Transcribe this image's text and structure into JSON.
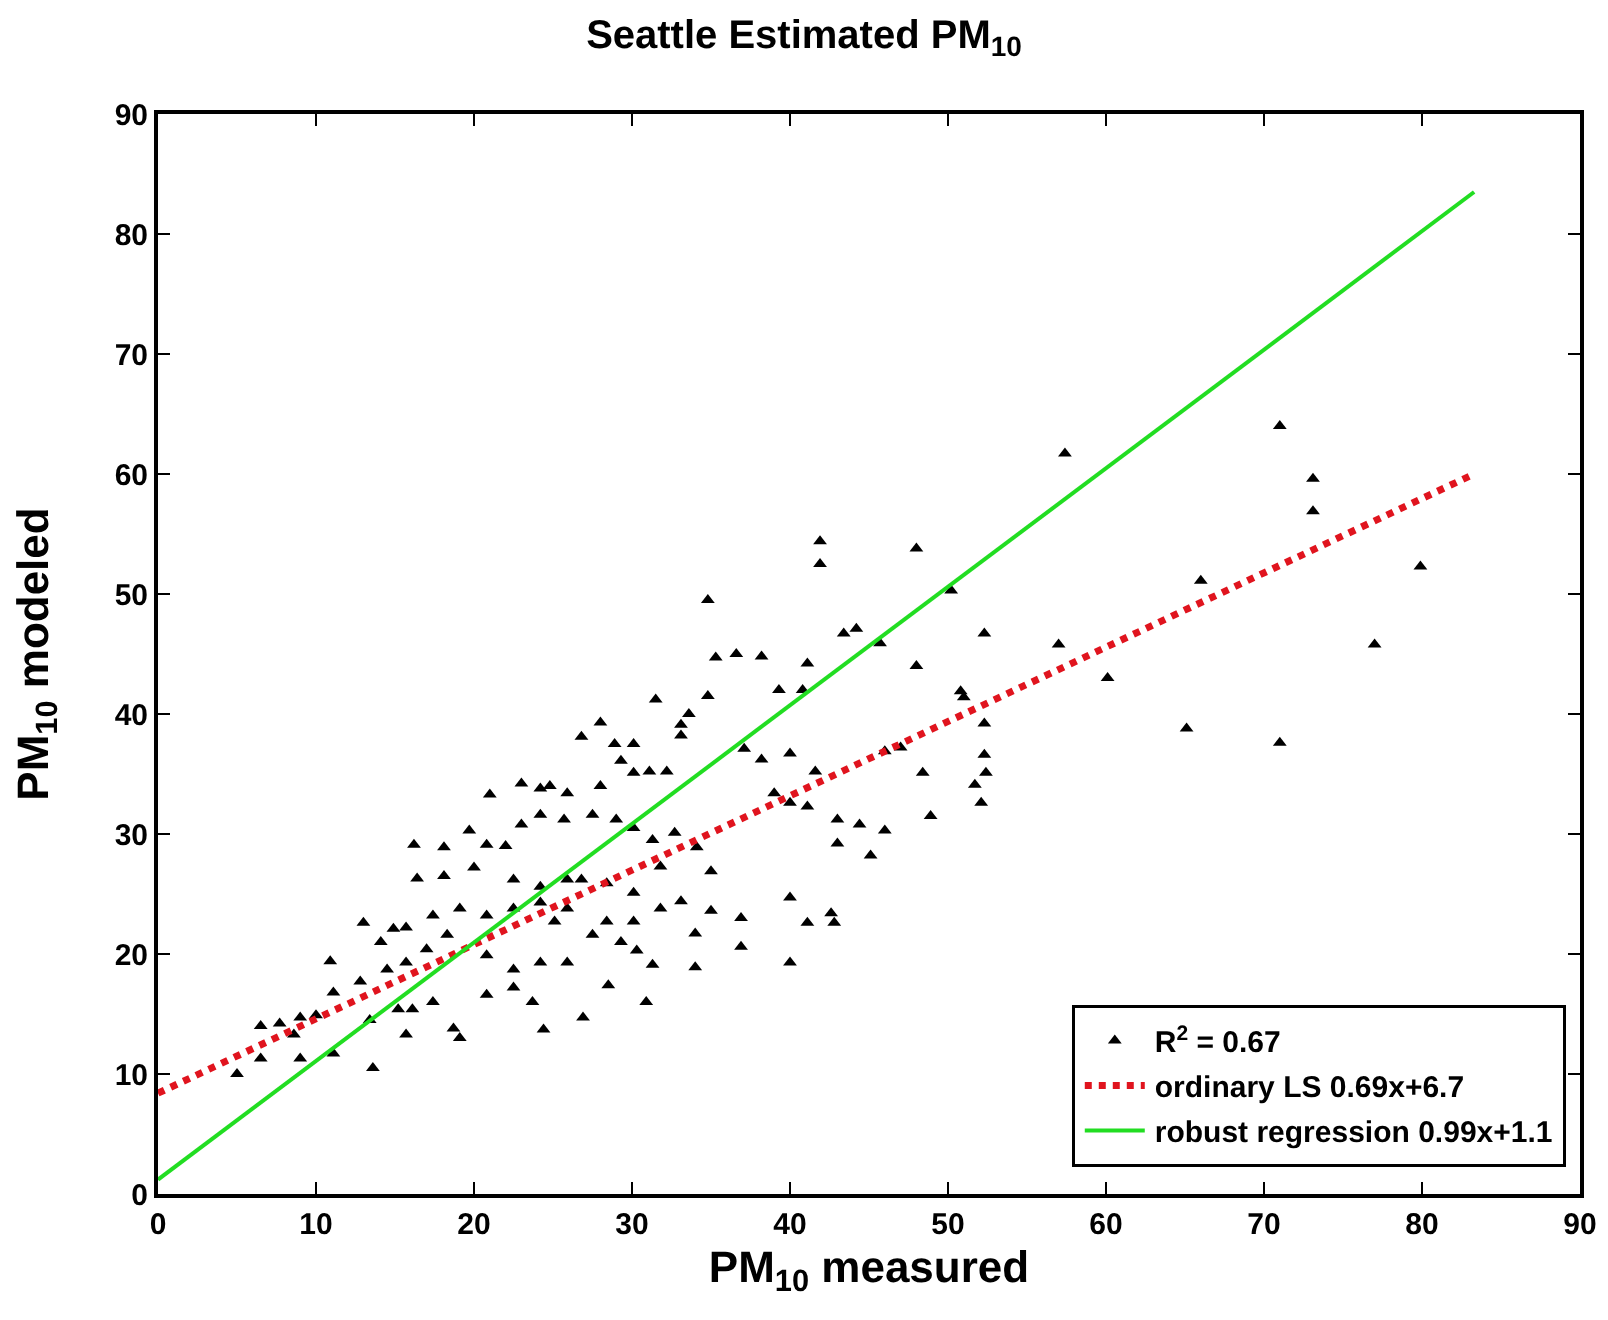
{
  "chart_data": {
    "type": "scatter",
    "title": "Seattle Estimated PM$_{10}$",
    "xlabel": "PM$_{10}$ measured",
    "ylabel": "PM$_{10}$ modeled",
    "xlim": [
      0,
      90
    ],
    "ylim": [
      0,
      90
    ],
    "xticks": [
      0,
      10,
      20,
      30,
      40,
      50,
      60,
      70,
      80,
      90
    ],
    "yticks": [
      0,
      10,
      20,
      30,
      40,
      50,
      60,
      70,
      80,
      90
    ],
    "legend": "bottom right",
    "series": [
      {
        "name": "R$^{2}$ = 0.67",
        "marker": "triangle",
        "color": "#000000",
        "x": [
          41.9,
          41.9,
          34.8,
          43.4,
          44.2,
          45.7,
          35.3,
          36.6,
          38.2,
          41.1,
          39.3,
          40.8,
          34.8,
          31.5,
          33.6,
          33.1,
          33.1,
          28.0,
          26.8,
          28.9,
          30.1,
          29.3,
          30.1,
          31.1,
          32.2,
          37.1,
          38.2,
          40.0,
          41.6,
          46.0,
          47.0,
          28.0,
          21.0,
          23.0,
          24.2,
          24.8,
          25.9,
          23.0,
          24.2,
          25.7,
          16.2,
          18.1,
          19.7,
          20.8,
          22.0,
          27.5,
          29.0,
          30.1,
          31.3,
          32.7,
          34.1,
          35.0,
          39.0,
          40.0,
          41.1,
          43.0,
          44.4,
          46.0,
          43.0,
          45.1,
          40.0,
          42.6,
          42.8,
          41.1,
          40.0,
          36.9,
          36.9,
          35.0,
          34.0,
          34.0,
          31.3,
          30.3,
          28.5,
          26.9,
          30.9,
          24.4,
          13.6,
          5.0,
          6.5,
          9.0,
          11.1,
          6.5,
          7.7,
          9.0,
          10.9,
          13.0,
          14.9,
          16.4,
          18.1,
          20.0,
          11.1,
          12.8,
          14.5,
          15.7,
          17.0,
          18.3,
          16.1,
          17.4,
          18.7,
          19.1,
          15.7,
          20.8,
          22.5,
          23.7,
          20.8,
          22.5,
          24.2,
          25.9,
          20.8,
          22.5,
          24.2,
          25.9,
          19.1,
          17.4,
          15.7,
          14.1,
          26.8,
          28.4,
          30.1,
          31.8,
          28.4,
          30.1,
          31.8,
          33.1,
          25.1,
          27.5,
          29.3,
          22.5,
          24.2,
          25.9,
          13.4,
          15.2,
          10.0,
          8.6,
          57.4,
          71.0,
          73.1,
          73.1,
          79.9,
          77.0,
          71.0,
          66.0,
          65.1,
          60.1,
          57.0,
          48.0,
          50.2,
          52.3,
          52.3,
          52.3,
          52.4,
          52.1,
          51.7,
          50.8,
          51.0,
          48.0,
          48.4,
          48.9
        ],
        "values": [
          54.4,
          52.5,
          49.5,
          46.7,
          47.1,
          45.9,
          44.7,
          45.0,
          44.8,
          44.2,
          42.0,
          42.0,
          41.5,
          41.2,
          40.0,
          39.1,
          38.2,
          39.3,
          38.1,
          37.5,
          37.5,
          36.1,
          35.1,
          35.2,
          35.2,
          37.1,
          36.2,
          36.7,
          35.2,
          36.9,
          37.2,
          34.0,
          33.3,
          34.2,
          33.8,
          34.0,
          33.4,
          30.8,
          31.6,
          31.2,
          29.1,
          28.9,
          30.3,
          29.1,
          29.0,
          31.6,
          31.2,
          30.5,
          29.5,
          30.1,
          28.9,
          26.9,
          33.4,
          32.6,
          32.3,
          31.2,
          30.8,
          30.3,
          29.2,
          28.2,
          24.7,
          23.4,
          22.6,
          22.6,
          19.3,
          23.0,
          20.6,
          23.6,
          21.7,
          18.9,
          19.1,
          20.3,
          17.4,
          14.7,
          16.0,
          13.7,
          10.5,
          10.0,
          11.3,
          11.3,
          11.7,
          14.0,
          14.2,
          14.7,
          19.4,
          22.6,
          22.1,
          26.3,
          26.5,
          27.2,
          16.8,
          17.7,
          18.7,
          19.3,
          20.4,
          21.6,
          15.4,
          16.0,
          13.8,
          13.0,
          13.3,
          16.6,
          17.2,
          16.0,
          19.9,
          18.7,
          19.3,
          19.3,
          23.2,
          23.8,
          24.3,
          23.8,
          23.8,
          23.2,
          22.2,
          21.0,
          26.2,
          25.9,
          25.1,
          27.3,
          22.7,
          22.7,
          23.8,
          24.4,
          22.7,
          21.6,
          21.0,
          26.2,
          25.6,
          26.2,
          14.5,
          15.4,
          14.9,
          13.3,
          61.7,
          64.0,
          59.6,
          56.9,
          52.3,
          45.8,
          37.6,
          51.1,
          38.8,
          43.0,
          45.8,
          53.8,
          50.3,
          46.7,
          39.2,
          36.6,
          35.1,
          32.6,
          34.1,
          41.9,
          41.4,
          44.0,
          35.1,
          31.5
        ]
      },
      {
        "name": "ordinary LS 0.69x+6.7",
        "type": "line",
        "line_style": "dotted",
        "color": "#e0141e",
        "x": [
          0,
          83.3
        ],
        "values": [
          8.4,
          60.0
        ]
      },
      {
        "name": "robust regression 0.99x+1.1",
        "type": "line",
        "line_style": "solid",
        "color": "#22dd22",
        "x": [
          0,
          83.3
        ],
        "values": [
          1.2,
          83.5
        ]
      }
    ]
  }
}
